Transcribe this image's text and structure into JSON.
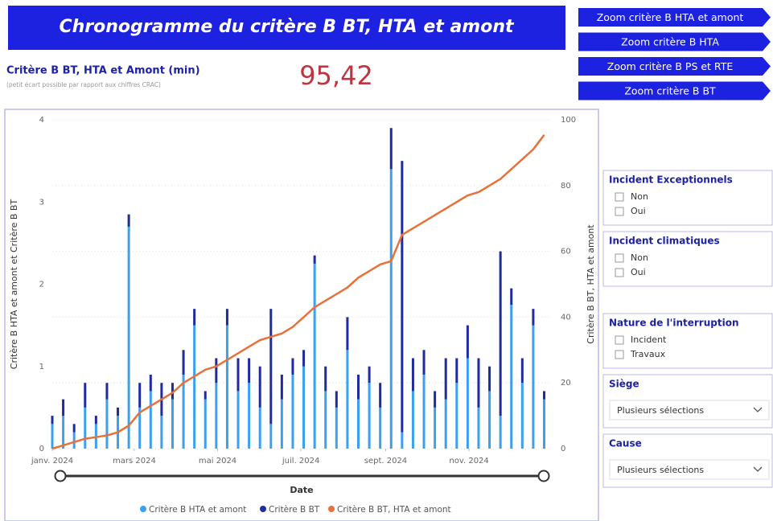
{
  "header": {
    "title": "Chronogramme du critère B BT, HTA et amont"
  },
  "buttons": [
    "Zoom critère B HTA et amont",
    "Zoom critère B HTA",
    "Zoom critère B PS et RTE",
    "Zoom critère B BT"
  ],
  "kpi": {
    "label": "Critère B BT, HTA et Amont (min)",
    "note": "(petit écart possible par rapport aux chiffres CRAC)",
    "value": "95,42"
  },
  "slicers": [
    {
      "title": "Incident Exceptionnels",
      "options": [
        "Non",
        "Oui"
      ]
    },
    {
      "title": "Incident climatiques",
      "options": [
        "Non",
        "Oui"
      ]
    },
    {
      "title": "Nature de l'interruption",
      "options": [
        "Incident",
        "Travaux"
      ]
    },
    {
      "title": "Siège",
      "value": "Plusieurs sélections"
    },
    {
      "title": "Cause",
      "value": "Plusieurs sélections"
    }
  ],
  "chart_data": {
    "type": "bar",
    "xlabel": "Date",
    "ylabel": "Critère B HTA et amont et Critère B BT",
    "y2label": "Critère B BT, HTA et amont",
    "x": [
      1,
      9,
      17,
      25,
      33,
      41,
      49,
      57,
      65,
      73,
      81,
      89,
      97,
      105,
      113,
      121,
      129,
      137,
      145,
      153,
      161,
      169,
      177,
      185,
      193,
      201,
      209,
      217,
      225,
      233,
      241,
      249,
      257,
      265,
      273,
      281,
      289,
      297,
      305,
      313,
      321,
      329,
      337,
      345,
      353,
      361
    ],
    "xlim": [
      1,
      366
    ],
    "xticks": [
      {
        "value": 1,
        "label": "janv. 2024"
      },
      {
        "value": 61,
        "label": "mars 2024"
      },
      {
        "value": 122,
        "label": "mai 2024"
      },
      {
        "value": 183,
        "label": "juil. 2024"
      },
      {
        "value": 245,
        "label": "sept. 2024"
      },
      {
        "value": 306,
        "label": "nov. 2024"
      }
    ],
    "ylim": [
      0,
      4
    ],
    "yticks": [
      0,
      1,
      2,
      3,
      4
    ],
    "y2lim": [
      0,
      100
    ],
    "y2ticks": [
      0,
      20,
      40,
      60,
      80,
      100
    ],
    "grid": true,
    "series": [
      {
        "name": "Critère B HTA et amont",
        "color": "#3aa0f0",
        "values": [
          0.3,
          0.4,
          0.2,
          0.5,
          0.3,
          0.6,
          0.4,
          2.7,
          0.5,
          0.7,
          0.4,
          0.6,
          0.9,
          1.5,
          0.6,
          0.8,
          1.5,
          0.7,
          0.8,
          0.5,
          0.3,
          0.6,
          0.9,
          1.0,
          2.25,
          0.7,
          0.5,
          1.2,
          0.6,
          0.8,
          0.5,
          3.4,
          0.2,
          0.7,
          0.9,
          0.5,
          0.6,
          0.8,
          1.1,
          0.5,
          0.7,
          0.4,
          1.75,
          0.8,
          1.5,
          0.6
        ]
      },
      {
        "name": "Critère B BT",
        "color": "#1f2b9e",
        "values": [
          0.1,
          0.2,
          0.1,
          0.3,
          0.1,
          0.2,
          0.1,
          0.15,
          0.3,
          0.2,
          0.4,
          0.2,
          0.3,
          0.2,
          0.1,
          0.3,
          0.2,
          0.4,
          0.3,
          0.5,
          1.4,
          0.3,
          0.2,
          0.2,
          0.1,
          0.3,
          0.2,
          0.4,
          0.3,
          0.2,
          0.3,
          0.5,
          3.3,
          0.4,
          0.3,
          0.2,
          0.5,
          0.3,
          0.4,
          0.6,
          0.3,
          2.0,
          0.2,
          0.3,
          0.2,
          0.1
        ]
      },
      {
        "name": "Critère B BT, HTA et amont",
        "color": "#e8713a",
        "axis": "y2",
        "type": "line",
        "values": [
          0,
          1,
          2,
          3,
          3.5,
          4,
          5,
          7,
          11,
          13,
          15,
          17,
          20,
          22,
          24,
          25,
          27,
          29,
          31,
          33,
          34,
          35,
          37,
          40,
          43,
          45,
          47,
          49,
          52,
          54,
          56,
          57,
          65,
          67,
          69,
          71,
          73,
          75,
          77,
          78,
          80,
          82,
          85,
          88,
          91,
          95.4
        ]
      }
    ]
  }
}
